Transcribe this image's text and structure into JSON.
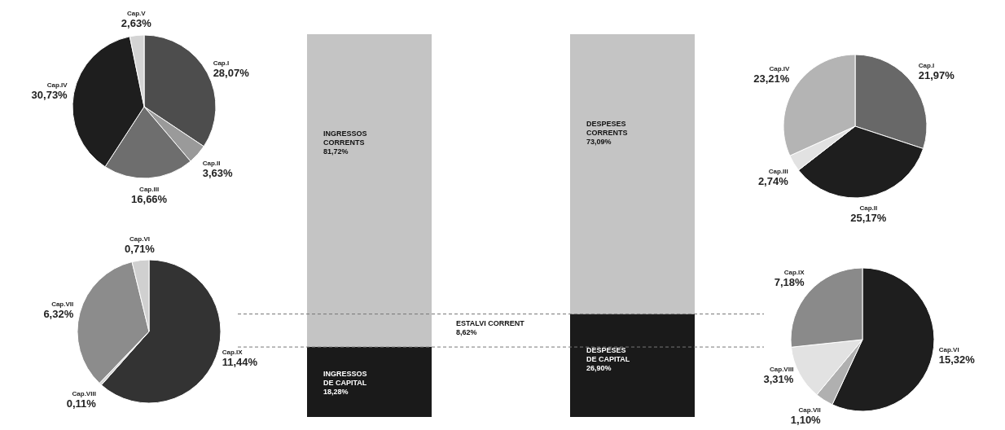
{
  "chart_data": [
    {
      "type": "pie",
      "categories": [
        "Cap.I",
        "Cap.II",
        "Cap.III",
        "Cap.IV",
        "Cap.V"
      ],
      "values": [
        28.07,
        3.63,
        16.66,
        30.73,
        2.63
      ],
      "value_labels": [
        "28,07%",
        "3,63%",
        "16,66%",
        "30,73%",
        "2,63%"
      ],
      "colors": [
        "#4d4d4d",
        "#9a9a9a",
        "#6e6e6e",
        "#1e1e1e",
        "#d4d4d4"
      ]
    },
    {
      "type": "pie",
      "categories": [
        "Cap.IX",
        "Cap.VIII",
        "Cap.VII",
        "Cap.VI"
      ],
      "values": [
        11.44,
        0.11,
        6.32,
        0.71
      ],
      "value_labels": [
        "11,44%",
        "0,11%",
        "6,32%",
        "0,71%"
      ],
      "colors": [
        "#333333",
        "#d8d8d8",
        "#8c8c8c",
        "#d0d0d0"
      ]
    },
    {
      "type": "bar",
      "stacked": true,
      "categories": [
        null,
        null
      ],
      "ylim": [
        0,
        100
      ],
      "tick_labels": false,
      "series": [
        {
          "color": "#1a1a1a",
          "values": [
            18.28,
            26.9
          ],
          "value_labels": [
            "INGRESSOS\nDE CAPITAL\n18,28%",
            "DESPESES\nDE CAPITAL\n26,90%"
          ]
        },
        {
          "color": "#c4c4c4",
          "values": [
            81.72,
            73.09
          ],
          "value_labels": [
            "INGRESSOS\nCORRENTS\n81,72%",
            "DESPESES\nCORRENTS\n73,09%"
          ]
        }
      ],
      "ref_lines": [
        {
          "axis": "y",
          "value": 18.28,
          "line_style": "dashed"
        },
        {
          "axis": "y",
          "value": 26.9,
          "label": "ESTALVI CORRENT\n8,62%",
          "line_style": "dashed"
        }
      ]
    },
    {
      "type": "pie",
      "categories": [
        "Cap.I",
        "Cap.II",
        "Cap.III",
        "Cap.IV"
      ],
      "values": [
        21.97,
        25.17,
        2.74,
        23.21
      ],
      "value_labels": [
        "21,97%",
        "25,17%",
        "2,74%",
        "23,21%"
      ],
      "colors": [
        "#686868",
        "#1e1e1e",
        "#e2e2e2",
        "#b4b4b4"
      ]
    },
    {
      "type": "pie",
      "categories": [
        "Cap.VI",
        "Cap.VII",
        "Cap.VIII",
        "Cap.IX"
      ],
      "values": [
        15.32,
        1.1,
        3.31,
        7.18
      ],
      "value_labels": [
        "15,32%",
        "1,10%",
        "3,31%",
        "7,18%"
      ],
      "colors": [
        "#1e1e1e",
        "#b0b0b0",
        "#e2e2e2",
        "#8a8a8a"
      ]
    }
  ]
}
